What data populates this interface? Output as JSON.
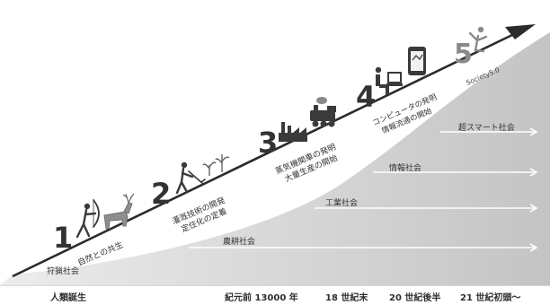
{
  "stages": [
    {
      "number": "1",
      "caption_lines": [
        "自然との共生"
      ]
    },
    {
      "number": "2",
      "caption_lines": [
        "灌漑技術の開発",
        "定住化の定着"
      ]
    },
    {
      "number": "3",
      "caption_lines": [
        "蒸気機関車の発明",
        "大量生産の開始"
      ]
    },
    {
      "number": "4",
      "caption_lines": [
        "コンピュータの発明",
        "情報流通の開始"
      ]
    },
    {
      "number": "5",
      "caption_lines": [
        "Society5.0"
      ]
    }
  ],
  "societies": [
    {
      "label": "狩猟社会"
    },
    {
      "label": "農耕社会"
    },
    {
      "label": "工業社会"
    },
    {
      "label": "情報社会"
    },
    {
      "label": "超スマート社会"
    }
  ],
  "timeline": [
    "人類誕生",
    "紀元前 13000 年",
    "18 世紀末",
    "20 世紀後半",
    "21 世紀初頭～"
  ],
  "icons": [
    "hunter-with-bow-icon",
    "deer-icon",
    "farmer-with-hoe-icon",
    "sprout-icon",
    "factory-icon",
    "steam-locomotive-icon",
    "person-at-computer-icon",
    "smartphone-icon",
    "person-cheering-icon"
  ],
  "colors": {
    "band": "#d2d2d2",
    "arrow": "#2b2b2b",
    "text": "#333333",
    "light_arrow": "#ffffff"
  }
}
